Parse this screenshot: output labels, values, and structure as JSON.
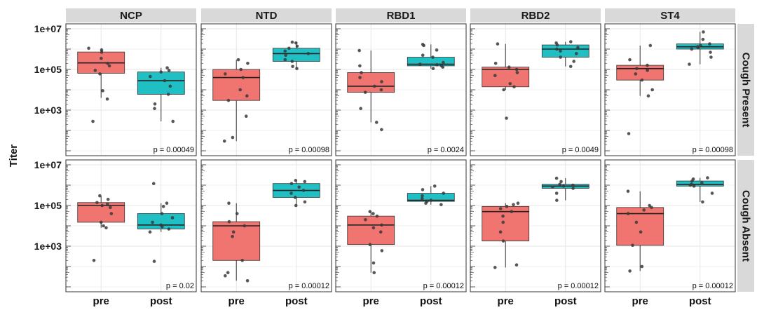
{
  "chart_data": {
    "type": "box",
    "ylabel": "Titer",
    "yscale": "log10",
    "ylim": [
      10,
      10000000
    ],
    "yticks": [
      {
        "value": 1000,
        "label": "1e+03"
      },
      {
        "value": 100000,
        "label": "1e+05"
      },
      {
        "value": 10000000,
        "label": "1e+07"
      }
    ],
    "categories": [
      "pre",
      "post"
    ],
    "colors": {
      "pre": "#f07470",
      "post": "#1fbfc4",
      "strip": "#d9d9d9",
      "grid": "#e6e6e6"
    },
    "columns": [
      "NCP",
      "NTD",
      "RBD1",
      "RBD2",
      "ST4"
    ],
    "rows": [
      "Cough Present",
      "Cough Absent"
    ],
    "panels": [
      {
        "row": "Cough Present",
        "col": "NCP",
        "p_value": "p = 0.00049",
        "boxes": [
          {
            "group": "pre",
            "min": 4000,
            "q1": 65000,
            "median": 210000,
            "q3": 720000,
            "max": 1100000,
            "points": [
              280,
              3500,
              9000,
              60000,
              90000,
              150000,
              200000,
              350000,
              700000,
              900000,
              1100000
            ]
          },
          {
            "group": "post",
            "min": 280,
            "q1": 6000,
            "median": 28000,
            "q3": 75000,
            "max": 120000,
            "points": [
              280,
              1200,
              2000,
              6000,
              15000,
              28000,
              45000,
              75000,
              90000,
              120000
            ]
          }
        ]
      },
      {
        "row": "Cough Present",
        "col": "NTD",
        "p_value": "p = 0.00098",
        "boxes": [
          {
            "group": "pre",
            "min": 30,
            "q1": 3000,
            "median": 40000,
            "q3": 100000,
            "max": 300000,
            "points": [
              30,
              45,
              500,
              3000,
              5000,
              10000,
              40000,
              60000,
              100000,
              200000,
              300000
            ]
          },
          {
            "group": "post",
            "min": 110000,
            "q1": 250000,
            "median": 600000,
            "q3": 1100000,
            "max": 2200000,
            "points": [
              110000,
              140000,
              250000,
              300000,
              500000,
              600000,
              800000,
              1100000,
              1400000,
              2000000,
              2200000
            ]
          }
        ]
      },
      {
        "row": "Cough Present",
        "col": "RBD1",
        "p_value": "p = 0.0024",
        "boxes": [
          {
            "group": "pre",
            "min": 250,
            "q1": 7500,
            "median": 15000,
            "q3": 70000,
            "max": 850000,
            "points": [
              110,
              250,
              1200,
              7500,
              10000,
              15000,
              25000,
              40000,
              70000,
              150000,
              850000
            ]
          },
          {
            "group": "post",
            "min": 110000,
            "q1": 150000,
            "median": 180000,
            "q3": 400000,
            "max": 1700000,
            "points": [
              110000,
              130000,
              150000,
              170000,
              180000,
              220000,
              400000,
              500000,
              900000,
              1500000,
              1700000
            ]
          }
        ]
      },
      {
        "row": "Cough Present",
        "col": "RBD2",
        "p_value": "p = 0.0049",
        "boxes": [
          {
            "group": "pre",
            "min": 10000,
            "q1": 14000,
            "median": 100000,
            "q3": 130000,
            "max": 1800000,
            "points": [
              400,
              10000,
              14000,
              20000,
              50000,
              70000,
              100000,
              130000,
              200000,
              1800000
            ]
          },
          {
            "group": "post",
            "min": 140000,
            "q1": 400000,
            "median": 1000000,
            "q3": 1600000,
            "max": 2300000,
            "points": [
              140000,
              250000,
              400000,
              600000,
              800000,
              1000000,
              1200000,
              1600000,
              2000000,
              2300000
            ]
          }
        ]
      },
      {
        "row": "Cough Present",
        "col": "ST4",
        "p_value": "p = 0.00098",
        "boxes": [
          {
            "group": "pre",
            "min": 5000,
            "q1": 30000,
            "median": 110000,
            "q3": 160000,
            "max": 1500000,
            "points": [
              70,
              5000,
              10000,
              30000,
              60000,
              90000,
              110000,
              160000,
              300000,
              1500000
            ]
          },
          {
            "group": "post",
            "min": 180000,
            "q1": 1000000,
            "median": 1300000,
            "q3": 1800000,
            "max": 7000000,
            "points": [
              180000,
              400000,
              700000,
              1000000,
              1200000,
              1300000,
              1500000,
              1800000,
              3000000,
              7000000
            ]
          }
        ]
      },
      {
        "row": "Cough Absent",
        "col": "NCP",
        "p_value": "p = 0.02",
        "boxes": [
          {
            "group": "pre",
            "min": 8000,
            "q1": 15000,
            "median": 100000,
            "q3": 140000,
            "max": 300000,
            "points": [
              200,
              8000,
              10000,
              15000,
              40000,
              80000,
              100000,
              120000,
              140000,
              200000,
              300000
            ]
          },
          {
            "group": "post",
            "min": 5000,
            "q1": 7000,
            "median": 11000,
            "q3": 40000,
            "max": 130000,
            "points": [
              180,
              5000,
              7000,
              9000,
              11000,
              15000,
              25000,
              40000,
              90000,
              130000,
              1200000
            ]
          }
        ]
      },
      {
        "row": "Cough Absent",
        "col": "NTD",
        "p_value": "p = 0.00012",
        "boxes": [
          {
            "group": "pre",
            "min": 20,
            "q1": 200,
            "median": 10000,
            "q3": 16000,
            "max": 130000,
            "points": [
              20,
              35,
              50,
              200,
              3000,
              5000,
              10000,
              16000,
              40000,
              130000
            ]
          },
          {
            "group": "post",
            "min": 100000,
            "q1": 250000,
            "median": 550000,
            "q3": 1200000,
            "max": 1700000,
            "points": [
              100000,
              150000,
              250000,
              400000,
              550000,
              800000,
              1200000,
              1500000,
              1700000
            ]
          }
        ]
      },
      {
        "row": "Cough Absent",
        "col": "RBD1",
        "p_value": "p = 0.00012",
        "boxes": [
          {
            "group": "pre",
            "min": 50,
            "q1": 1200,
            "median": 11000,
            "q3": 30000,
            "max": 50000,
            "points": [
              50,
              150,
              600,
              1200,
              5000,
              8000,
              11000,
              20000,
              30000,
              40000,
              50000
            ]
          },
          {
            "group": "post",
            "min": 110000,
            "q1": 160000,
            "median": 180000,
            "q3": 400000,
            "max": 900000,
            "points": [
              110000,
              130000,
              160000,
              180000,
              220000,
              300000,
              400000,
              600000,
              900000
            ]
          }
        ]
      },
      {
        "row": "Cough Absent",
        "col": "RBD2",
        "p_value": "p = 0.00012",
        "boxes": [
          {
            "group": "pre",
            "min": 90,
            "q1": 1800,
            "median": 50000,
            "q3": 90000,
            "max": 130000,
            "points": [
              90,
              120,
              1800,
              5000,
              15000,
              30000,
              50000,
              70000,
              90000,
              110000,
              130000
            ]
          },
          {
            "group": "post",
            "min": 180000,
            "q1": 700000,
            "median": 900000,
            "q3": 1100000,
            "max": 2200000,
            "points": [
              180000,
              400000,
              700000,
              800000,
              900000,
              1000000,
              1100000,
              1500000,
              2200000
            ]
          }
        ]
      },
      {
        "row": "Cough Absent",
        "col": "ST4",
        "p_value": "p = 0.00012",
        "boxes": [
          {
            "group": "pre",
            "min": 60,
            "q1": 1100,
            "median": 40000,
            "q3": 80000,
            "max": 500000,
            "points": [
              60,
              100,
              1100,
              5000,
              15000,
              40000,
              60000,
              80000,
              100000,
              500000
            ]
          },
          {
            "group": "post",
            "min": 150000,
            "q1": 900000,
            "median": 1100000,
            "q3": 1600000,
            "max": 2300000,
            "points": [
              150000,
              400000,
              900000,
              1000000,
              1100000,
              1300000,
              1600000,
              2000000,
              2300000
            ]
          }
        ]
      }
    ]
  }
}
